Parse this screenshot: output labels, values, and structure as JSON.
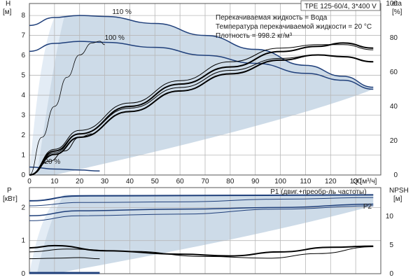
{
  "chart_data": [
    {
      "type": "line",
      "panel": "top",
      "model": "TPE 125-60/4, 3*400 V",
      "info_lines": [
        "Перекачиваемая жидкость = Вода",
        "Температура перекачиваемой жидкости = 20 °C",
        "Плотность = 998.2 кг/м³"
      ],
      "x_axis": {
        "label": "Q [м³/ч]",
        "ticks": [
          0,
          10,
          20,
          30,
          40,
          50,
          60,
          70,
          80,
          90,
          100,
          110,
          120,
          130
        ],
        "range": [
          0,
          140
        ]
      },
      "y_left": {
        "label": "H",
        "unit": "[м]",
        "ticks": [
          0,
          1,
          2,
          3,
          4,
          5,
          6,
          7,
          8
        ],
        "range": [
          0,
          8.6
        ]
      },
      "y_right": {
        "label": "eta",
        "unit": "[%]",
        "ticks": [
          0,
          20,
          40,
          60,
          80,
          100
        ],
        "range": [
          0,
          100
        ]
      },
      "operating_area_color": "#bccfe0",
      "curve_labels": [
        {
          "text": "110 %",
          "x": 33,
          "y": 8.0
        },
        {
          "text": "100 %",
          "x": 30,
          "y": 6.7
        },
        {
          "text": "20 %",
          "x": 6,
          "y": 0.5
        }
      ],
      "head_curves": [
        {
          "name": "110 %",
          "color": "#1f3f7a",
          "points": [
            [
              0,
              7.5
            ],
            [
              10,
              7.9
            ],
            [
              20,
              8.0
            ],
            [
              30,
              7.95
            ],
            [
              50,
              7.6
            ],
            [
              70,
              7.0
            ],
            [
              90,
              6.3
            ],
            [
              110,
              5.5
            ],
            [
              125,
              4.95
            ],
            [
              137,
              4.4
            ]
          ]
        },
        {
          "name": "100 %",
          "color": "#1f3f7a",
          "points": [
            [
              0,
              6.2
            ],
            [
              10,
              6.6
            ],
            [
              20,
              6.7
            ],
            [
              30,
              6.65
            ],
            [
              50,
              6.4
            ],
            [
              70,
              6.0
            ],
            [
              90,
              5.6
            ],
            [
              110,
              5.1
            ],
            [
              125,
              4.75
            ],
            [
              137,
              4.3
            ]
          ]
        },
        {
          "name": "20 %",
          "color": "#1f3f7a",
          "points": [
            [
              0,
              0.4
            ],
            [
              10,
              0.3
            ],
            [
              20,
              0.25
            ],
            [
              28,
              0.2
            ]
          ]
        }
      ],
      "efficiency_curves": [
        {
          "color": "#000000",
          "width": 2,
          "points": [
            [
              0,
              0
            ],
            [
              10,
              14
            ],
            [
              20,
              24
            ],
            [
              40,
              40
            ],
            [
              60,
              53
            ],
            [
              80,
              63
            ],
            [
              100,
              72
            ],
            [
              115,
              75
            ],
            [
              125,
              77
            ],
            [
              137,
              74
            ]
          ]
        },
        {
          "color": "#000000",
          "width": 2,
          "points": [
            [
              0,
              0
            ],
            [
              10,
              12
            ],
            [
              20,
              22
            ],
            [
              40,
              37
            ],
            [
              60,
              49
            ],
            [
              80,
              59
            ],
            [
              100,
              67
            ],
            [
              115,
              70
            ],
            [
              125,
              69
            ],
            [
              137,
              66
            ]
          ]
        },
        {
          "color": "#000000",
          "width": 1,
          "points": [
            [
              0,
              0
            ],
            [
              10,
              15
            ],
            [
              20,
              26
            ],
            [
              40,
              42
            ],
            [
              60,
              55
            ],
            [
              80,
              66
            ],
            [
              100,
              74
            ],
            [
              115,
              76
            ],
            [
              125,
              76
            ],
            [
              137,
              73
            ]
          ]
        },
        {
          "color": "#000000",
          "width": 1,
          "points": [
            [
              0,
              0
            ],
            [
              10,
              13
            ],
            [
              20,
              24
            ],
            [
              40,
              39
            ],
            [
              60,
              51
            ],
            [
              80,
              61
            ],
            [
              100,
              68
            ],
            [
              115,
              70
            ],
            [
              125,
              69
            ],
            [
              137,
              66
            ]
          ]
        },
        {
          "color": "#000000",
          "width": 0.8,
          "points": [
            [
              0,
              0
            ],
            [
              5,
              22
            ],
            [
              10,
              40
            ],
            [
              15,
              57
            ],
            [
              20,
              70
            ],
            [
              25,
              77
            ],
            [
              28,
              78
            ],
            [
              30,
              76
            ]
          ]
        },
        {
          "color": "#000000",
          "width": 1,
          "points": [
            [
              0,
              0
            ],
            [
              8,
              8
            ],
            [
              14,
              14
            ],
            [
              20,
              22
            ],
            [
              25,
              24
            ]
          ]
        }
      ]
    },
    {
      "type": "line",
      "panel": "bottom",
      "x_axis": {
        "ticks": [
          0,
          10,
          20,
          30,
          40,
          50,
          60,
          70,
          80,
          90,
          100,
          110,
          120,
          130
        ],
        "range": [
          0,
          140
        ]
      },
      "y_left": {
        "label": "P",
        "unit": "[кВт]",
        "ticks": [
          0,
          1,
          2
        ],
        "range": [
          0,
          2.6
        ]
      },
      "y_right": {
        "label": "NPSH",
        "unit": "[м]",
        "ticks": [
          0,
          5,
          10
        ],
        "range": [
          0,
          15
        ]
      },
      "series_labels": [
        {
          "text": "P1 (двиг.+преобр-ль частоты)",
          "x": 96,
          "y": 2.39
        },
        {
          "text": "P2",
          "x": 133,
          "y": 1.95
        }
      ],
      "power_curves": [
        {
          "name": "P1 (двиг.+преобр-ль частоты)",
          "color": "#1f3f7a",
          "width": 2,
          "points": [
            [
              0,
              2.2
            ],
            [
              20,
              2.35
            ],
            [
              60,
              2.36
            ],
            [
              100,
              2.37
            ],
            [
              137,
              2.38
            ]
          ]
        },
        {
          "color": "#1f3f7a",
          "width": 1,
          "points": [
            [
              0,
              2.05
            ],
            [
              20,
              2.15
            ],
            [
              60,
              2.17
            ],
            [
              100,
              2.25
            ],
            [
              137,
              2.3
            ]
          ]
        },
        {
          "name": "P2",
          "color": "#1f3f7a",
          "width": 1.5,
          "points": [
            [
              0,
              1.75
            ],
            [
              20,
              1.9
            ],
            [
              60,
              1.95
            ],
            [
              100,
              2.0
            ],
            [
              137,
              2.1
            ]
          ]
        },
        {
          "color": "#1f3f7a",
          "width": 1,
          "points": [
            [
              0,
              1.6
            ],
            [
              20,
              1.75
            ],
            [
              60,
              1.8
            ],
            [
              100,
              1.95
            ],
            [
              137,
              2.05
            ]
          ]
        },
        {
          "color": "#1f3f7a",
          "width": 3,
          "points": [
            [
              0,
              0.02
            ],
            [
              28,
              0.02
            ]
          ]
        }
      ],
      "npsh_curves": [
        {
          "color": "#000000",
          "width": 2,
          "points": [
            [
              0,
              4.5
            ],
            [
              10,
              4.9
            ],
            [
              30,
              4.0
            ],
            [
              60,
              3.4
            ],
            [
              80,
              3.1
            ],
            [
              100,
              3.8
            ],
            [
              120,
              4.6
            ],
            [
              137,
              4.8
            ]
          ]
        },
        {
          "color": "#000000",
          "width": 1,
          "points": [
            [
              0,
              3.8
            ],
            [
              15,
              4.3
            ],
            [
              40,
              3.9
            ],
            [
              70,
              3.0
            ],
            [
              95,
              2.7
            ],
            [
              115,
              3.5
            ],
            [
              137,
              4.7
            ]
          ]
        },
        {
          "color": "#000000",
          "width": 1,
          "points": [
            [
              0,
              2.6
            ],
            [
              10,
              2.7
            ],
            [
              20,
              2.8
            ],
            [
              28,
              2.6
            ]
          ]
        }
      ]
    }
  ]
}
